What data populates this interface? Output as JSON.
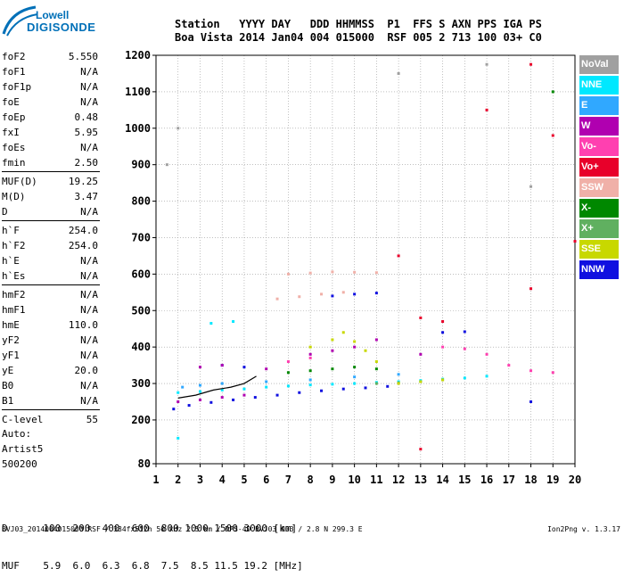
{
  "logo": {
    "top": "Lowell",
    "bottom": "DIGISONDE"
  },
  "header": {
    "cols": [
      {
        "label": "Station",
        "value": "Boa Vista"
      },
      {
        "label": "YYYY",
        "value": "2014"
      },
      {
        "label": "DAY",
        "value": "Jan04"
      },
      {
        "label": "DDD",
        "value": "004"
      },
      {
        "label": "HHMMSS",
        "value": "015000"
      },
      {
        "label": "P1",
        "value": "RSF"
      },
      {
        "label": "FFS",
        "value": "005"
      },
      {
        "label": "S",
        "value": "2"
      },
      {
        "label": "AXN",
        "value": "713"
      },
      {
        "label": "PPS",
        "value": "100"
      },
      {
        "label": "IGA",
        "value": "03+"
      },
      {
        "label": "PS",
        "value": "C0"
      }
    ]
  },
  "params": {
    "group1": [
      {
        "name": "foF2",
        "value": "5.550"
      },
      {
        "name": "foF1",
        "value": "N/A"
      },
      {
        "name": "foF1p",
        "value": "N/A"
      },
      {
        "name": "foE",
        "value": "N/A"
      },
      {
        "name": "foEp",
        "value": "0.48"
      },
      {
        "name": "fxI",
        "value": "5.95"
      },
      {
        "name": "foEs",
        "value": "N/A"
      },
      {
        "name": "fmin",
        "value": "2.50"
      }
    ],
    "group2": [
      {
        "name": "MUF(D)",
        "value": "19.25"
      },
      {
        "name": "M(D)",
        "value": "3.47"
      },
      {
        "name": "D",
        "value": "N/A"
      }
    ],
    "group3": [
      {
        "name": "h`F",
        "value": "254.0"
      },
      {
        "name": "h`F2",
        "value": "254.0"
      },
      {
        "name": "h`E",
        "value": "N/A"
      },
      {
        "name": "h`Es",
        "value": "N/A"
      }
    ],
    "group4": [
      {
        "name": "hmF2",
        "value": "N/A"
      },
      {
        "name": "hmF1",
        "value": "N/A"
      },
      {
        "name": "hmE",
        "value": "110.0"
      },
      {
        "name": "yF2",
        "value": "N/A"
      },
      {
        "name": "yF1",
        "value": "N/A"
      },
      {
        "name": "yE",
        "value": "20.0"
      },
      {
        "name": "B0",
        "value": "N/A"
      },
      {
        "name": "B1",
        "value": "N/A"
      }
    ],
    "group5": [
      {
        "name": "C-level",
        "value": "55"
      }
    ]
  },
  "artist": {
    "line1": "Auto:",
    "line2": "Artist5",
    "line3": "500200"
  },
  "legend": [
    {
      "label": "NoVal",
      "color": "#a0a0a0"
    },
    {
      "label": "NNE",
      "color": "#00e8ff"
    },
    {
      "label": "E",
      "color": "#30a8ff"
    },
    {
      "label": "W",
      "color": "#b000b0"
    },
    {
      "label": "Vo-",
      "color": "#ff40b0"
    },
    {
      "label": "Vo+",
      "color": "#e8002a"
    },
    {
      "label": "SSW",
      "color": "#f0b0a8"
    },
    {
      "label": "X-",
      "color": "#008800"
    },
    {
      "label": "X+",
      "color": "#60b060"
    },
    {
      "label": "SSE",
      "color": "#c8d800"
    },
    {
      "label": "NNW",
      "color": "#1010e0"
    }
  ],
  "dtable": {
    "row1_label": "D",
    "row1": [
      "100",
      "200",
      "400",
      "600",
      "800",
      "1000",
      "1500",
      "3000",
      "[km]"
    ],
    "row2_label": "MUF",
    "row2": [
      "5.9",
      "6.0",
      "6.3",
      "6.8",
      "7.5",
      "8.5",
      "11.5",
      "19.2",
      "[MHz]"
    ]
  },
  "footer": {
    "text": "BVJ03_2014004015000.RSF / 384fx512h 50 kHz 2.5 km / DPS-4D BVJ03 003 / 2.8 N 299.3 E",
    "version": "Ion2Png v. 1.3.17"
  },
  "chart_data": {
    "type": "scatter",
    "title": "",
    "xlabel": "",
    "ylabel": "",
    "xlim": [
      1,
      20
    ],
    "ylim": [
      80,
      1200
    ],
    "xticks": [
      "1",
      "2",
      "3",
      "4",
      "5",
      "6",
      "7",
      "8",
      "9",
      "10",
      "11",
      "12",
      "13",
      "14",
      "15",
      "16",
      "17",
      "18",
      "19",
      "20"
    ],
    "yticks": [
      "80",
      "200",
      "300",
      "400",
      "500",
      "600",
      "700",
      "800",
      "900",
      "1000",
      "1100",
      "1200"
    ],
    "grid": true,
    "traces": [
      {
        "name": "NNW",
        "color": "#1010e0",
        "points": [
          [
            1.8,
            230
          ],
          [
            2.5,
            240
          ],
          [
            3.5,
            248
          ],
          [
            4.5,
            255
          ],
          [
            5.5,
            262
          ],
          [
            6.5,
            268
          ],
          [
            7.5,
            275
          ],
          [
            8.5,
            280
          ],
          [
            9.5,
            285
          ],
          [
            10.5,
            288
          ],
          [
            11.5,
            292
          ],
          [
            4,
            350
          ],
          [
            5,
            345
          ],
          [
            9,
            540
          ],
          [
            10,
            545
          ],
          [
            11,
            548
          ],
          [
            14,
            440
          ],
          [
            15,
            442
          ],
          [
            18,
            250
          ]
        ]
      },
      {
        "name": "NNE",
        "color": "#00e8ff",
        "points": [
          [
            2,
            275
          ],
          [
            3,
            278
          ],
          [
            4,
            282
          ],
          [
            5,
            285
          ],
          [
            6,
            290
          ],
          [
            7,
            293
          ],
          [
            8,
            296
          ],
          [
            9,
            298
          ],
          [
            10,
            300
          ],
          [
            11,
            303
          ],
          [
            12,
            305
          ],
          [
            13,
            308
          ],
          [
            14,
            312
          ],
          [
            15,
            315
          ],
          [
            16,
            320
          ],
          [
            3.5,
            465
          ],
          [
            4.5,
            470
          ],
          [
            2,
            150
          ]
        ]
      },
      {
        "name": "E",
        "color": "#30a8ff",
        "points": [
          [
            2.2,
            290
          ],
          [
            3,
            295
          ],
          [
            4,
            300
          ],
          [
            6,
            305
          ],
          [
            8,
            310
          ],
          [
            10,
            318
          ],
          [
            12,
            325
          ]
        ]
      },
      {
        "name": "W",
        "color": "#b000b0",
        "points": [
          [
            2,
            250
          ],
          [
            3,
            255
          ],
          [
            4,
            262
          ],
          [
            5,
            268
          ],
          [
            3,
            345
          ],
          [
            4,
            350
          ],
          [
            6,
            340
          ],
          [
            8,
            380
          ],
          [
            9,
            390
          ],
          [
            10,
            400
          ],
          [
            11,
            420
          ],
          [
            13,
            380
          ]
        ]
      },
      {
        "name": "Vo-",
        "color": "#ff40b0",
        "points": [
          [
            7,
            360
          ],
          [
            8,
            370
          ],
          [
            14,
            400
          ],
          [
            15,
            395
          ],
          [
            16,
            380
          ],
          [
            17,
            350
          ],
          [
            18,
            335
          ],
          [
            19,
            330
          ]
        ]
      },
      {
        "name": "Vo+",
        "color": "#e8002a",
        "points": [
          [
            13,
            480
          ],
          [
            14,
            470
          ],
          [
            12,
            650
          ],
          [
            16,
            1050
          ],
          [
            18,
            1175
          ],
          [
            19,
            980
          ],
          [
            13,
            120
          ],
          [
            18,
            560
          ],
          [
            20,
            690
          ]
        ]
      },
      {
        "name": "SSW",
        "color": "#f0b0a8",
        "points": [
          [
            6.5,
            532
          ],
          [
            7.5,
            538
          ],
          [
            8.5,
            545
          ],
          [
            9.5,
            550
          ],
          [
            7,
            600
          ],
          [
            8,
            603
          ],
          [
            9,
            606
          ],
          [
            10,
            605
          ],
          [
            11,
            604
          ]
        ]
      },
      {
        "name": "X-",
        "color": "#008800",
        "points": [
          [
            7,
            330
          ],
          [
            8,
            335
          ],
          [
            9,
            340
          ],
          [
            10,
            345
          ],
          [
            11,
            340
          ],
          [
            19,
            1100
          ]
        ]
      },
      {
        "name": "X+",
        "color": "#60b060",
        "points": [
          [
            11,
            300
          ],
          [
            12,
            302
          ],
          [
            13,
            305
          ],
          [
            14,
            310
          ]
        ]
      },
      {
        "name": "SSE",
        "color": "#c8d800",
        "points": [
          [
            8,
            400
          ],
          [
            9,
            420
          ],
          [
            9.5,
            440
          ],
          [
            10,
            415
          ],
          [
            10.5,
            390
          ],
          [
            11,
            360
          ],
          [
            12,
            300
          ],
          [
            13,
            305
          ],
          [
            14,
            310
          ]
        ]
      },
      {
        "name": "NoVal",
        "color": "#a0a0a0",
        "points": [
          [
            1.5,
            900
          ],
          [
            2,
            1000
          ],
          [
            12,
            1150
          ],
          [
            16,
            1175
          ],
          [
            18,
            840
          ]
        ]
      }
    ]
  }
}
